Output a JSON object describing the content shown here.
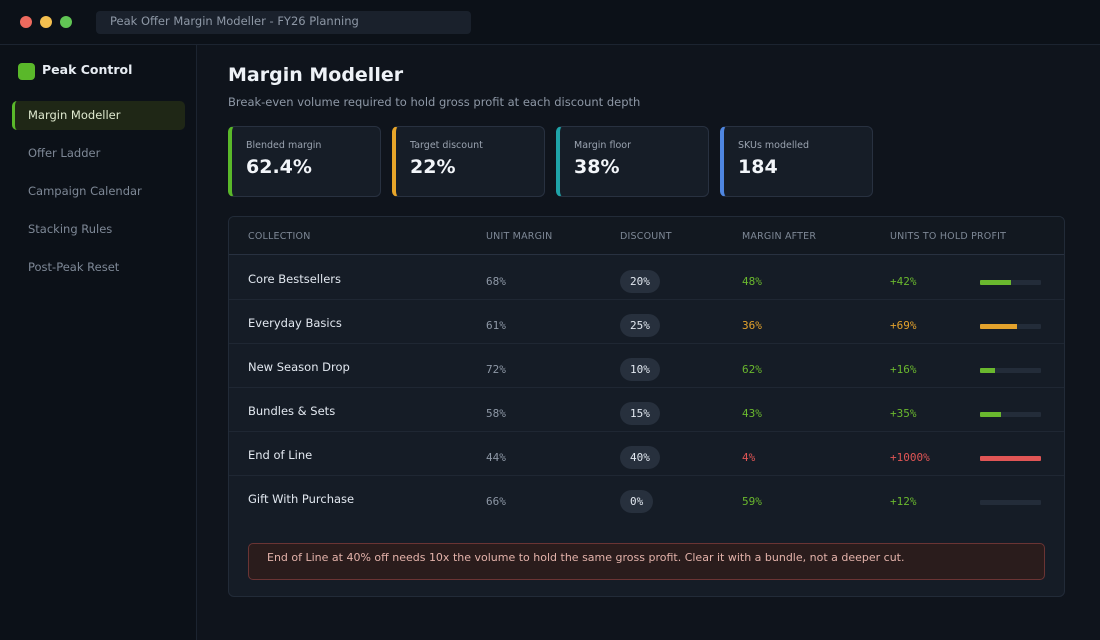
{
  "window": {
    "title": "Peak Offer Margin Modeller  -  FY26 Planning"
  },
  "brand": {
    "name": "Peak Control",
    "color": "#5ab82a"
  },
  "sidebar": {
    "items": [
      {
        "label": "Margin Modeller",
        "active": true
      },
      {
        "label": "Offer Ladder",
        "active": false
      },
      {
        "label": "Campaign Calendar",
        "active": false
      },
      {
        "label": "Stacking Rules",
        "active": false
      },
      {
        "label": "Post-Peak Reset",
        "active": false
      }
    ]
  },
  "page": {
    "title": "Margin Modeller",
    "subtitle": "Break-even volume required to hold gross profit at each discount depth"
  },
  "kpis": [
    {
      "label": "Blended margin",
      "value": "62.4%",
      "accent": "#5ab82a"
    },
    {
      "label": "Target discount",
      "value": "22%",
      "accent": "#e7a52a"
    },
    {
      "label": "Margin floor",
      "value": "38%",
      "accent": "#1fa3a8"
    },
    {
      "label": "SKUs modelled",
      "value": "184",
      "accent": "#4f86e0"
    }
  ],
  "table": {
    "headers": {
      "collection": "COLLECTION",
      "unit_margin": "UNIT MARGIN",
      "discount": "DISCOUNT",
      "margin_after": "MARGIN AFTER",
      "units": "UNITS TO HOLD PROFIT"
    },
    "rows": [
      {
        "collection": "Core Bestsellers",
        "unit_margin": "68%",
        "discount": "20%",
        "margin_after": "48%",
        "units": "+42%",
        "status": "ok",
        "level": 0.5
      },
      {
        "collection": "Everyday Basics",
        "unit_margin": "61%",
        "discount": "25%",
        "margin_after": "36%",
        "units": "+69%",
        "status": "warn",
        "level": 0.6
      },
      {
        "collection": "New Season Drop",
        "unit_margin": "72%",
        "discount": "10%",
        "margin_after": "62%",
        "units": "+16%",
        "status": "ok",
        "level": 0.25
      },
      {
        "collection": "Bundles & Sets",
        "unit_margin": "58%",
        "discount": "15%",
        "margin_after": "43%",
        "units": "+35%",
        "status": "ok",
        "level": 0.35
      },
      {
        "collection": "End of Line",
        "unit_margin": "44%",
        "discount": "40%",
        "margin_after": "4%",
        "units": "+1000%",
        "status": "bad",
        "level": 1.0
      },
      {
        "collection": "Gift With Purchase",
        "unit_margin": "66%",
        "discount": "0%",
        "margin_after": "59%",
        "units": "+12%",
        "status": "ok",
        "level": 0.0
      }
    ]
  },
  "status_colors": {
    "ok": "#6ab82e",
    "warn": "#e3a22c",
    "bad": "#e05555"
  },
  "note": "End of Line at 40% off needs 10x the volume to hold the same gross profit. Clear it with a bundle, not a deeper cut."
}
